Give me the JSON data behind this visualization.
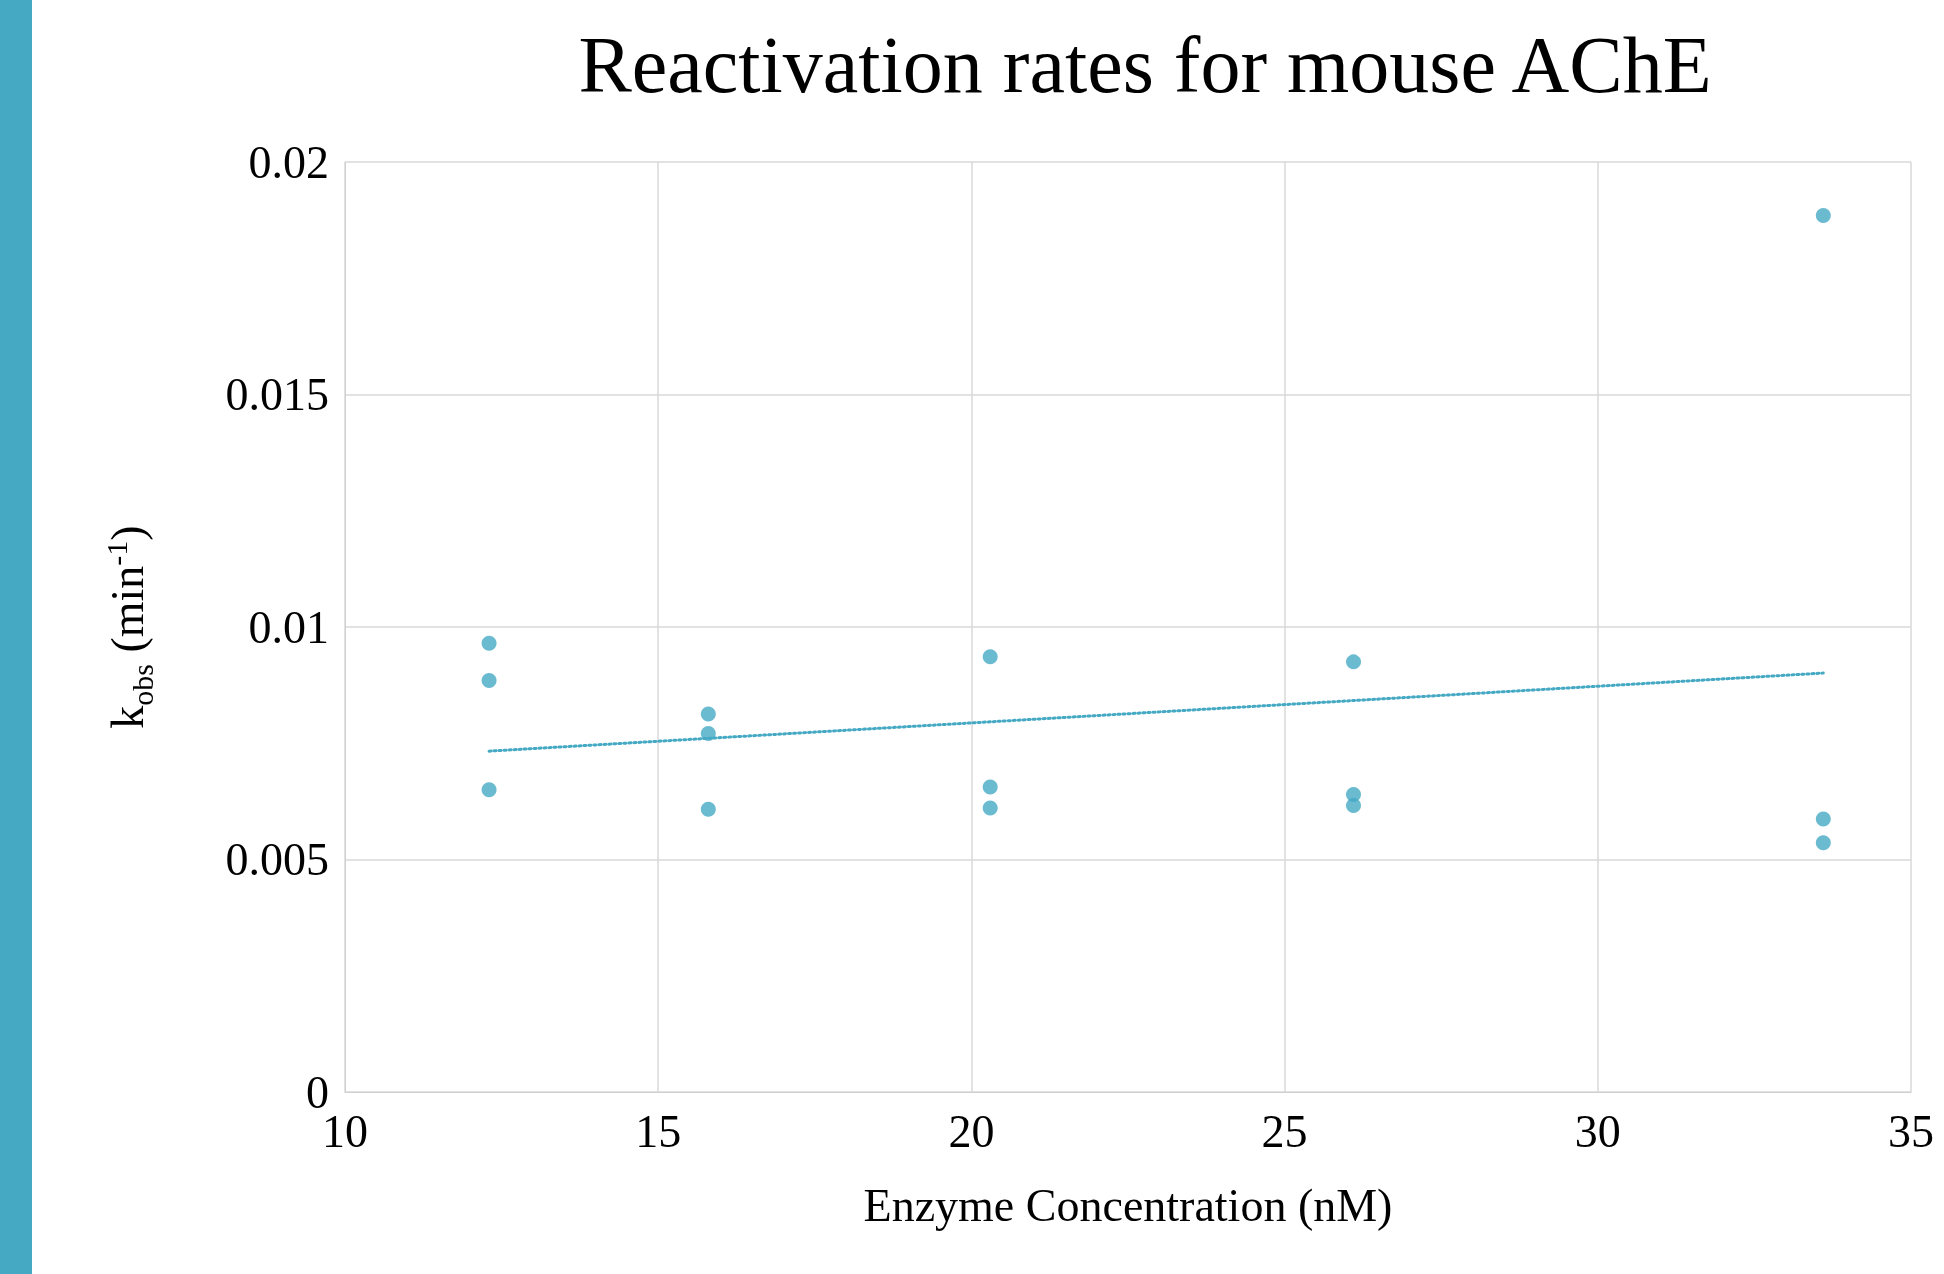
{
  "chart_data": {
    "type": "scatter",
    "title": "Reactivation rates for mouse AChE",
    "xlabel": "Enzyme Concentration (nM)",
    "ylabel": "k$_{obs}$ (min$^{-1}$)",
    "xlim": [
      10,
      35
    ],
    "xticks": [
      10,
      15,
      20,
      25,
      30,
      35
    ],
    "ylim": [
      0,
      0.02
    ],
    "yticks": [
      0,
      0.005,
      0.01,
      0.015,
      0.02
    ],
    "grid": true,
    "series": [
      {
        "color": "#45a9c4",
        "marker": "circle",
        "x": [
          12.3,
          12.3,
          12.3,
          15.8,
          15.8,
          15.8,
          20.3,
          20.3,
          20.3,
          26.1,
          26.1,
          26.1,
          33.6,
          33.6,
          33.6
        ],
        "values": [
          0.00965,
          0.00885,
          0.0065,
          0.00813,
          0.00771,
          0.00608,
          0.00936,
          0.00656,
          0.00611,
          0.00925,
          0.0064,
          0.00616,
          0.01885,
          0.00587,
          0.00536
        ]
      },
      {
        "type": "line",
        "color": "#45a9c4",
        "marker": "none",
        "line_style": "dotted",
        "x": [
          12.3,
          33.6
        ],
        "values": [
          0.00733,
          0.00901
        ]
      }
    ]
  }
}
